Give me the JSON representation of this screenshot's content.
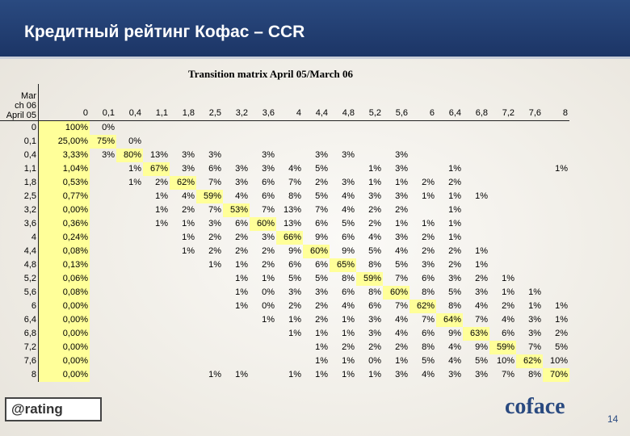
{
  "header": {
    "title": "Кредитный рейтинг Кофас – CCR"
  },
  "table": {
    "title": "Transition matrix April 05/March 06",
    "corner": [
      "Mar",
      "ch 06",
      "April 05"
    ],
    "columns": [
      "0",
      "0,1",
      "0,4",
      "1,1",
      "1,8",
      "2,5",
      "3,2",
      "3,6",
      "4",
      "4,4",
      "4,8",
      "5,2",
      "5,6",
      "6",
      "6,4",
      "6,8",
      "7,2",
      "7,6",
      "8"
    ],
    "rows": [
      {
        "label": "0",
        "cells": [
          "100%",
          "0%",
          null,
          null,
          null,
          null,
          null,
          null,
          null,
          null,
          null,
          null,
          null,
          null,
          null,
          null,
          null,
          null,
          null
        ]
      },
      {
        "label": "0,1",
        "cells": [
          "25,00%",
          "75%",
          "0%",
          null,
          null,
          null,
          null,
          null,
          null,
          null,
          null,
          null,
          null,
          null,
          null,
          null,
          null,
          null,
          null
        ]
      },
      {
        "label": "0,4",
        "cells": [
          "3,33%",
          "3%",
          "80%",
          "13%",
          "3%",
          "3%",
          null,
          "3%",
          null,
          "3%",
          "3%",
          null,
          "3%",
          null,
          null,
          null,
          null,
          null,
          null
        ]
      },
      {
        "label": "1,1",
        "cells": [
          "1,04%",
          null,
          "1%",
          "67%",
          "3%",
          "6%",
          "3%",
          "3%",
          "4%",
          "5%",
          null,
          "1%",
          "3%",
          null,
          "1%",
          null,
          null,
          null,
          "1%"
        ]
      },
      {
        "label": "1,8",
        "cells": [
          "0,53%",
          null,
          "1%",
          "2%",
          "62%",
          "7%",
          "3%",
          "6%",
          "7%",
          "2%",
          "3%",
          "1%",
          "1%",
          "2%",
          "2%",
          null,
          null,
          null,
          null
        ]
      },
      {
        "label": "2,5",
        "cells": [
          "0,77%",
          null,
          null,
          "1%",
          "4%",
          "59%",
          "4%",
          "6%",
          "8%",
          "5%",
          "4%",
          "3%",
          "3%",
          "1%",
          "1%",
          "1%",
          null,
          null,
          null
        ]
      },
      {
        "label": "3,2",
        "cells": [
          "0,00%",
          null,
          null,
          "1%",
          "2%",
          "7%",
          "53%",
          "7%",
          "13%",
          "7%",
          "4%",
          "2%",
          "2%",
          null,
          "1%",
          null,
          null,
          null,
          null
        ]
      },
      {
        "label": "3,6",
        "cells": [
          "0,36%",
          null,
          null,
          "1%",
          "1%",
          "3%",
          "6%",
          "60%",
          "13%",
          "6%",
          "5%",
          "2%",
          "1%",
          "1%",
          "1%",
          null,
          null,
          null,
          null
        ]
      },
      {
        "label": "4",
        "cells": [
          "0,24%",
          null,
          null,
          null,
          "1%",
          "2%",
          "2%",
          "3%",
          "66%",
          "9%",
          "6%",
          "4%",
          "3%",
          "2%",
          "1%",
          null,
          null,
          null,
          null
        ]
      },
      {
        "label": "4,4",
        "cells": [
          "0,08%",
          null,
          null,
          null,
          "1%",
          "2%",
          "2%",
          "2%",
          "9%",
          "60%",
          "9%",
          "5%",
          "4%",
          "2%",
          "2%",
          "1%",
          null,
          null,
          null
        ]
      },
      {
        "label": "4,8",
        "cells": [
          "0,13%",
          null,
          null,
          null,
          null,
          "1%",
          "1%",
          "2%",
          "6%",
          "6%",
          "65%",
          "8%",
          "5%",
          "3%",
          "2%",
          "1%",
          null,
          null,
          null
        ]
      },
      {
        "label": "5,2",
        "cells": [
          "0,06%",
          null,
          null,
          null,
          null,
          null,
          "1%",
          "1%",
          "5%",
          "5%",
          "8%",
          "59%",
          "7%",
          "6%",
          "3%",
          "2%",
          "1%",
          null,
          null
        ]
      },
      {
        "label": "5,6",
        "cells": [
          "0,08%",
          null,
          null,
          null,
          null,
          null,
          "1%",
          "0%",
          "3%",
          "3%",
          "6%",
          "8%",
          "60%",
          "8%",
          "5%",
          "3%",
          "1%",
          "1%",
          null
        ]
      },
      {
        "label": "6",
        "cells": [
          "0,00%",
          null,
          null,
          null,
          null,
          null,
          "1%",
          "0%",
          "2%",
          "2%",
          "4%",
          "6%",
          "7%",
          "62%",
          "8%",
          "4%",
          "2%",
          "1%",
          "1%"
        ]
      },
      {
        "label": "6,4",
        "cells": [
          "0,00%",
          null,
          null,
          null,
          null,
          null,
          null,
          "1%",
          "1%",
          "2%",
          "1%",
          "3%",
          "4%",
          "7%",
          "64%",
          "7%",
          "4%",
          "3%",
          "1%"
        ]
      },
      {
        "label": "6,8",
        "cells": [
          "0,00%",
          null,
          null,
          null,
          null,
          null,
          null,
          null,
          "1%",
          "1%",
          "1%",
          "3%",
          "4%",
          "6%",
          "9%",
          "63%",
          "6%",
          "3%",
          "2%"
        ]
      },
      {
        "label": "7,2",
        "cells": [
          "0,00%",
          null,
          null,
          null,
          null,
          null,
          null,
          null,
          null,
          "1%",
          "2%",
          "2%",
          "2%",
          "8%",
          "4%",
          "9%",
          "59%",
          "7%",
          "5%"
        ]
      },
      {
        "label": "7,6",
        "cells": [
          "0,00%",
          null,
          null,
          null,
          null,
          null,
          null,
          null,
          null,
          "1%",
          "1%",
          "0%",
          "1%",
          "5%",
          "4%",
          "5%",
          "10%",
          "62%",
          "10%"
        ]
      },
      {
        "label": "8",
        "cells": [
          "0,00%",
          null,
          null,
          null,
          null,
          "1%",
          "1%",
          null,
          "1%",
          "1%",
          "1%",
          "1%",
          "3%",
          "4%",
          "3%",
          "3%",
          "7%",
          "8%",
          "70%"
        ]
      }
    ]
  },
  "footer": {
    "left_logo": "@rating",
    "right_logo": "coface",
    "page": "14"
  }
}
